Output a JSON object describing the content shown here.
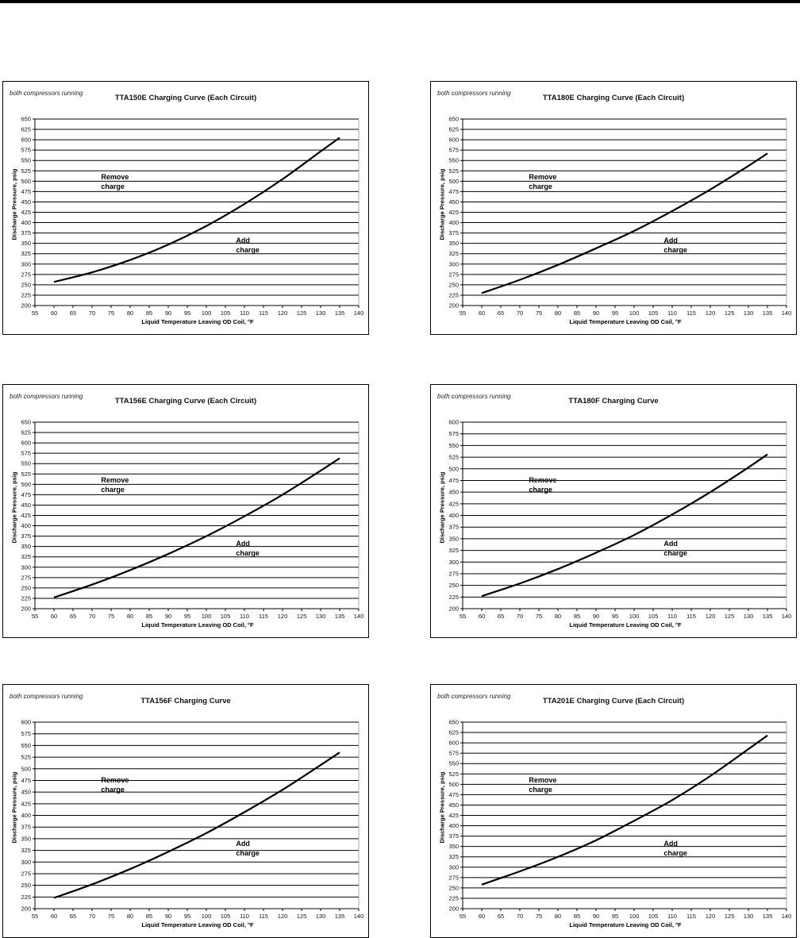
{
  "chart_data": [
    {
      "type": "line",
      "title": "TTA150E Charging Curve (Each Circuit)",
      "note": "both compressors running",
      "xlabel": "Liquid Temperature Leaving OD Coil, °F",
      "ylabel": "Discharge Pressure, psig",
      "xlim": [
        55,
        140
      ],
      "ylim": [
        200,
        650
      ],
      "xstep": 5,
      "ystep": 25,
      "grid": "horizontal",
      "annotations": [
        "Remove",
        "charge",
        "Add",
        "charge"
      ],
      "x": [
        60,
        70,
        80,
        90,
        100,
        110,
        120,
        130,
        135
      ],
      "y": [
        257,
        280,
        310,
        347,
        392,
        445,
        505,
        572,
        605
      ]
    },
    {
      "type": "line",
      "title": "TTA180E Charging Curve (Each Circuit)",
      "note": "both compressors running",
      "xlabel": "Liquid Temperature Leaving OD Coil, °F",
      "ylabel": "Discharge Pressure, psig",
      "xlim": [
        55,
        140
      ],
      "ylim": [
        200,
        650
      ],
      "xstep": 5,
      "ystep": 25,
      "grid": "horizontal",
      "annotations": [
        "Remove",
        "charge",
        "Add",
        "charge"
      ],
      "x": [
        60,
        70,
        80,
        90,
        100,
        110,
        120,
        130,
        135
      ],
      "y": [
        230,
        262,
        298,
        338,
        380,
        428,
        480,
        537,
        567
      ]
    },
    {
      "type": "line",
      "title": "TTA156E Charging Curve (Each Circuit)",
      "note": "both compressors running",
      "xlabel": "Liquid Temperature Leaving OD Coil, °F",
      "ylabel": "Discharge Pressure, psig",
      "xlim": [
        55,
        140
      ],
      "ylim": [
        200,
        650
      ],
      "xstep": 5,
      "ystep": 25,
      "grid": "horizontal",
      "annotations": [
        "Remove",
        "charge",
        "Add",
        "charge"
      ],
      "x": [
        60,
        70,
        80,
        90,
        100,
        110,
        120,
        130,
        135
      ],
      "y": [
        227,
        258,
        293,
        332,
        375,
        423,
        475,
        533,
        563
      ]
    },
    {
      "type": "line",
      "title": "TTA180F Charging Curve",
      "note": "both compressors running",
      "xlabel": "Liquid Temperature Leaving OD Coil, °F",
      "ylabel": "Discharge Pressure, psig",
      "xlim": [
        55,
        140
      ],
      "ylim": [
        200,
        600
      ],
      "xstep": 5,
      "ystep": 25,
      "grid": "horizontal",
      "annotations": [
        "Remove",
        "charge",
        "Add",
        "charge"
      ],
      "x": [
        60,
        70,
        80,
        90,
        100,
        110,
        120,
        130,
        135
      ],
      "y": [
        227,
        254,
        285,
        320,
        358,
        402,
        450,
        503,
        531
      ]
    },
    {
      "type": "line",
      "title": "TTA156F Charging Curve",
      "note": "both compressors running",
      "xlabel": "Liquid Temperature Leaving OD Coil, °F",
      "ylabel": "Discharge Pressure, psig",
      "xlim": [
        55,
        140
      ],
      "ylim": [
        200,
        600
      ],
      "xstep": 5,
      "ystep": 25,
      "grid": "horizontal",
      "annotations": [
        "Remove",
        "charge",
        "Add",
        "charge"
      ],
      "x": [
        60,
        70,
        80,
        90,
        100,
        110,
        120,
        130,
        135
      ],
      "y": [
        223,
        252,
        285,
        322,
        362,
        407,
        455,
        508,
        535
      ]
    },
    {
      "type": "line",
      "title": "TTA201E Charging Curve (Each Circuit)",
      "note": "both compressors running",
      "xlabel": "Liquid Temperature Leaving OD Coil, °F",
      "ylabel": "Discharge Pressure, psig",
      "xlim": [
        55,
        140
      ],
      "ylim": [
        200,
        650
      ],
      "xstep": 5,
      "ystep": 25,
      "grid": "horizontal",
      "annotations": [
        "Remove",
        "charge",
        "Add",
        "charge"
      ],
      "x": [
        60,
        70,
        80,
        90,
        100,
        110,
        120,
        130,
        135
      ],
      "y": [
        258,
        290,
        325,
        365,
        412,
        462,
        520,
        585,
        618
      ]
    }
  ]
}
